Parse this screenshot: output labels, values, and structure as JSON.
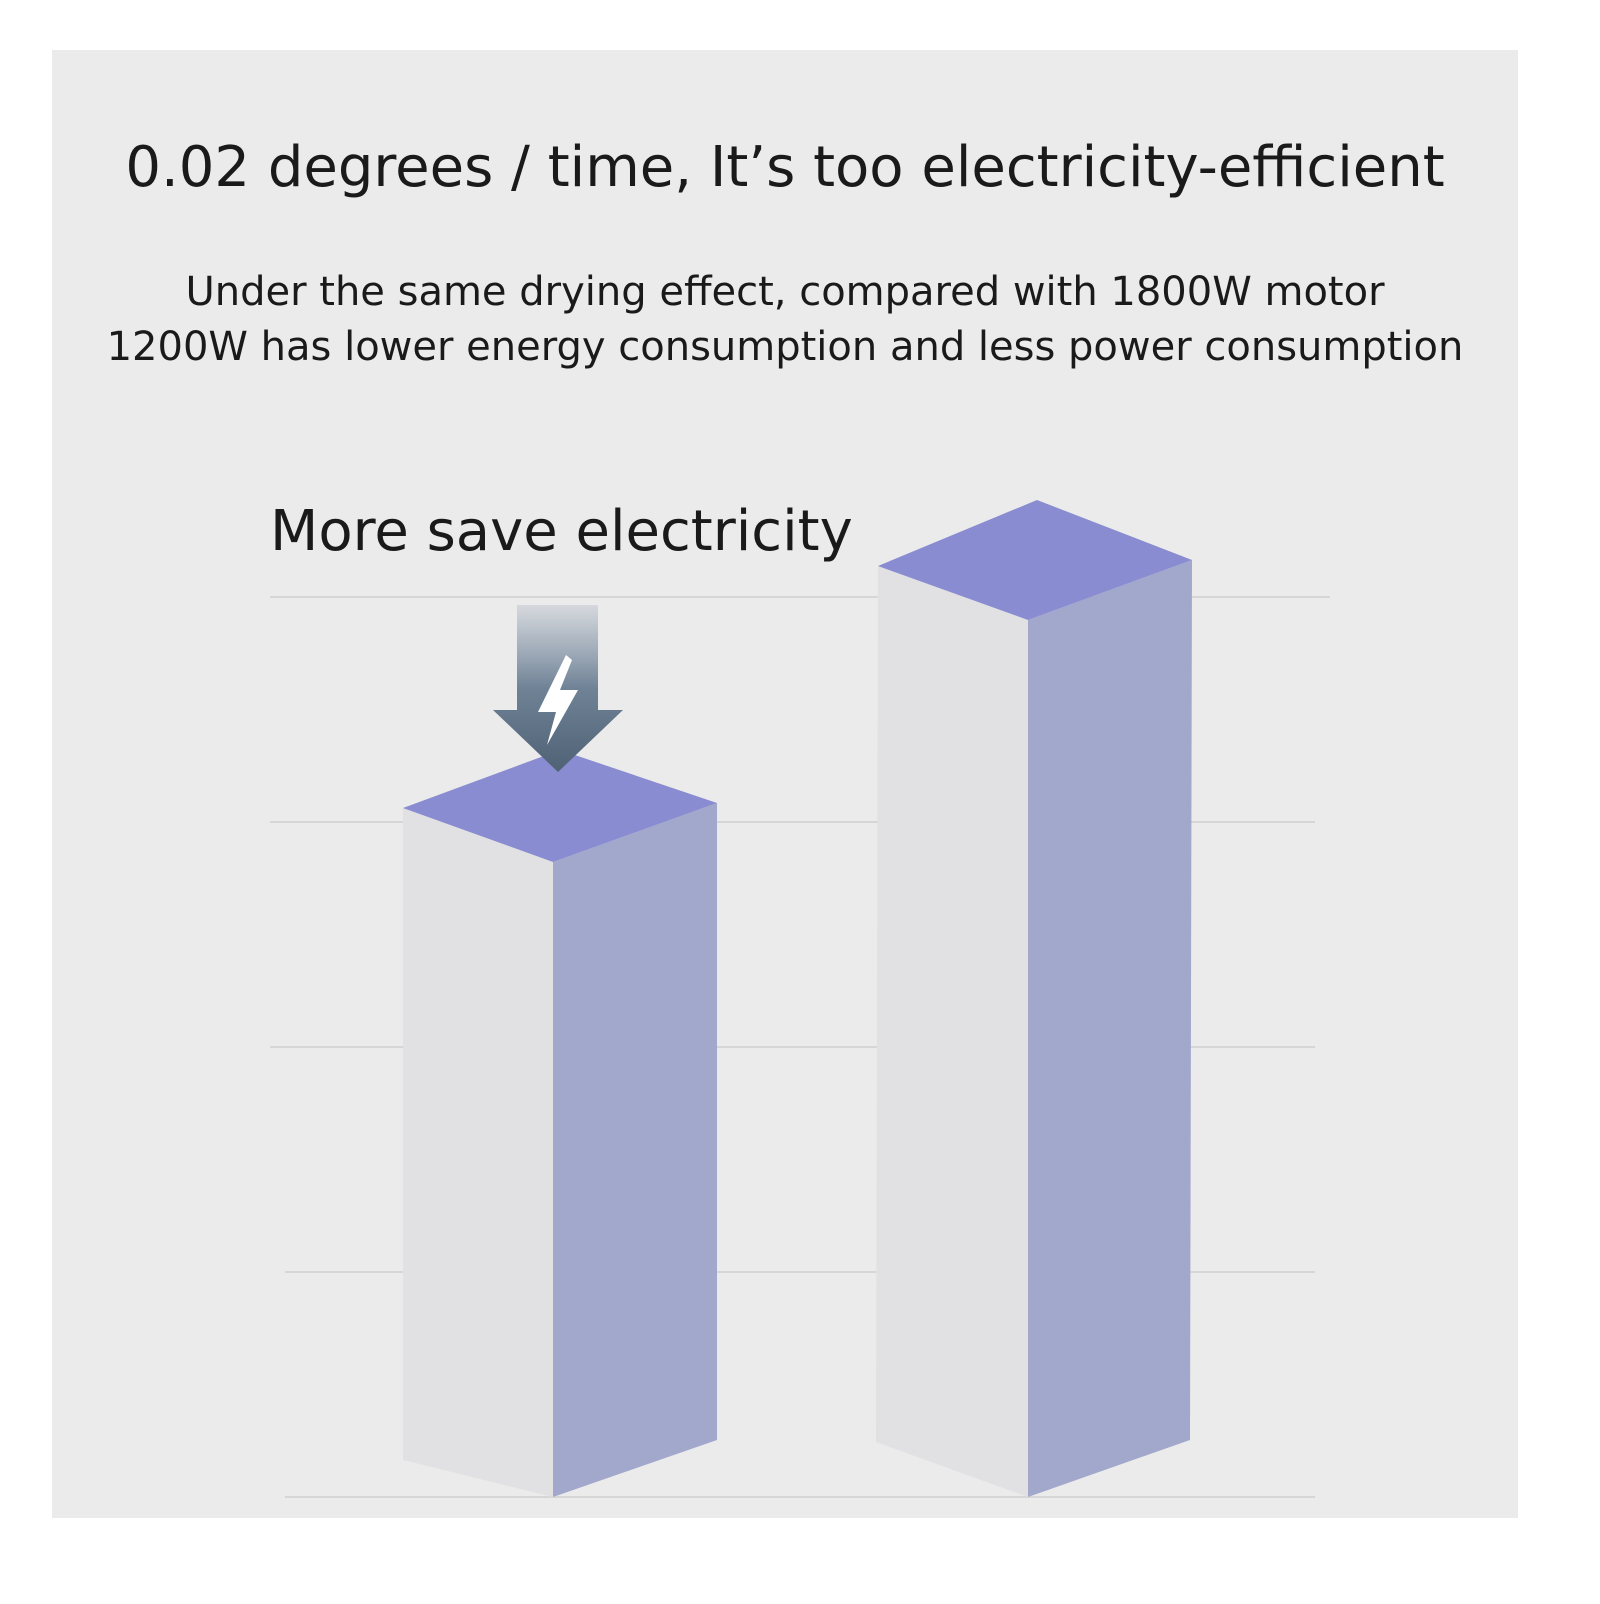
{
  "header": {
    "title": "0.02 degrees / time, It’s too electricity-efficient",
    "subtitle": [
      "Under the same drying effect, compared with 1800W motor",
      "1200W has lower energy consumption and less power consumption"
    ]
  },
  "illustration": {
    "label": "More save electricity"
  }
}
